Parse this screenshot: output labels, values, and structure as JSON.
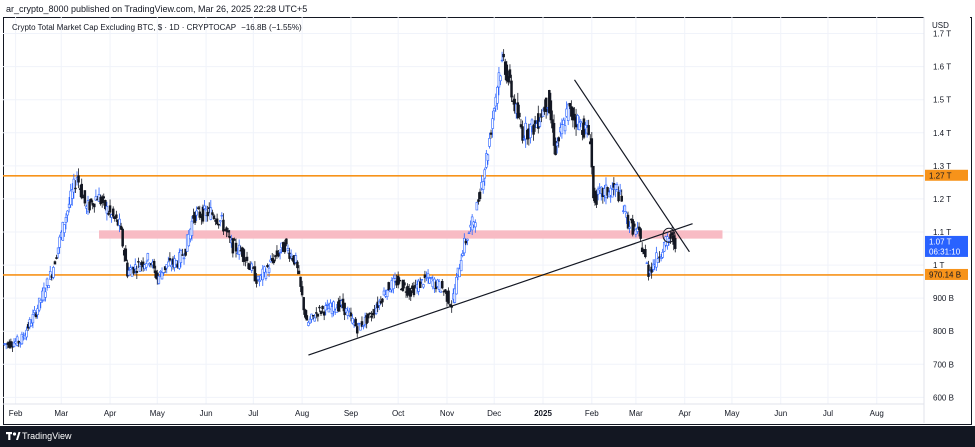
{
  "header": {
    "publish_text": "ar_crypto_8000 published on TradingView.com, Mar 26, 2025 22:28 UTC+5"
  },
  "chart_header": {
    "title": "Crypto Total Market Cap Excluding BTC, $ · 1D · CRYPTOCAP",
    "change": "−16.8B (−1.55%)"
  },
  "footer": {
    "brand": "TradingView",
    "logo_icon": "tradingview-logo-icon"
  },
  "colors": {
    "up": "#2962ff",
    "down": "#131722",
    "support_line": "#f7931a",
    "zone": "#f8bbc4",
    "trendline": "#131722",
    "price_tag": "#2962ff"
  },
  "chart_data": {
    "type": "candlestick",
    "title": "Crypto Total Market Cap Excluding BTC, $ · 1D · CRYPTOCAP",
    "currency": "USD",
    "ylim_billion": [
      580,
      1750
    ],
    "y_ticks": [
      {
        "value": 600,
        "label": "600 B"
      },
      {
        "value": 700,
        "label": "700 B"
      },
      {
        "value": 800,
        "label": "800 B"
      },
      {
        "value": 900,
        "label": "900 B"
      },
      {
        "value": 1000,
        "label": "1 T"
      },
      {
        "value": 1100,
        "label": "1.1 T"
      },
      {
        "value": 1200,
        "label": "1.2 T"
      },
      {
        "value": 1300,
        "label": "1.3 T"
      },
      {
        "value": 1400,
        "label": "1.4 T"
      },
      {
        "value": 1500,
        "label": "1.5 T"
      },
      {
        "value": 1600,
        "label": "1.6 T"
      },
      {
        "value": 1700,
        "label": "1.7 T"
      }
    ],
    "x_ticks": [
      {
        "date": "2024-02-01",
        "label": "Feb"
      },
      {
        "date": "2024-03-01",
        "label": "Mar"
      },
      {
        "date": "2024-04-01",
        "label": "Apr"
      },
      {
        "date": "2024-05-01",
        "label": "May"
      },
      {
        "date": "2024-06-01",
        "label": "Jun"
      },
      {
        "date": "2024-07-01",
        "label": "Jul"
      },
      {
        "date": "2024-08-01",
        "label": "Aug"
      },
      {
        "date": "2024-09-01",
        "label": "Sep"
      },
      {
        "date": "2024-10-01",
        "label": "Oct"
      },
      {
        "date": "2024-11-01",
        "label": "Nov"
      },
      {
        "date": "2024-12-01",
        "label": "Dec"
      },
      {
        "date": "2025-01-01",
        "label": "2025"
      },
      {
        "date": "2025-02-01",
        "label": "Feb"
      },
      {
        "date": "2025-03-01",
        "label": "Mar"
      },
      {
        "date": "2025-04-01",
        "label": "Apr"
      },
      {
        "date": "2025-05-01",
        "label": "May"
      },
      {
        "date": "2025-06-01",
        "label": "Jun"
      },
      {
        "date": "2025-07-01",
        "label": "Jul"
      },
      {
        "date": "2025-08-01",
        "label": "Aug"
      }
    ],
    "price_path": [
      [
        "2024-01-25",
        760
      ],
      [
        "2024-02-05",
        770
      ],
      [
        "2024-02-15",
        860
      ],
      [
        "2024-02-25",
        980
      ],
      [
        "2024-03-05",
        1150
      ],
      [
        "2024-03-12",
        1270
      ],
      [
        "2024-03-18",
        1170
      ],
      [
        "2024-03-25",
        1210
      ],
      [
        "2024-04-01",
        1160
      ],
      [
        "2024-04-08",
        1120
      ],
      [
        "2024-04-13",
        980
      ],
      [
        "2024-04-20",
        1000
      ],
      [
        "2024-04-27",
        1020
      ],
      [
        "2024-05-02",
        960
      ],
      [
        "2024-05-08",
        1000
      ],
      [
        "2024-05-15",
        1010
      ],
      [
        "2024-05-20",
        1050
      ],
      [
        "2024-05-25",
        1150
      ],
      [
        "2024-06-05",
        1160
      ],
      [
        "2024-06-12",
        1130
      ],
      [
        "2024-06-18",
        1060
      ],
      [
        "2024-06-25",
        1040
      ],
      [
        "2024-07-05",
        950
      ],
      [
        "2024-07-15",
        1020
      ],
      [
        "2024-07-22",
        1060
      ],
      [
        "2024-07-29",
        1010
      ],
      [
        "2024-08-05",
        820
      ],
      [
        "2024-08-12",
        860
      ],
      [
        "2024-08-20",
        870
      ],
      [
        "2024-08-27",
        880
      ],
      [
        "2024-09-06",
        810
      ],
      [
        "2024-09-15",
        850
      ],
      [
        "2024-09-25",
        930
      ],
      [
        "2024-10-01",
        950
      ],
      [
        "2024-10-10",
        920
      ],
      [
        "2024-10-20",
        960
      ],
      [
        "2024-10-30",
        930
      ],
      [
        "2024-11-05",
        880
      ],
      [
        "2024-11-12",
        1050
      ],
      [
        "2024-11-20",
        1150
      ],
      [
        "2024-11-28",
        1350
      ],
      [
        "2024-12-05",
        1580
      ],
      [
        "2024-12-08",
        1620
      ],
      [
        "2024-12-15",
        1480
      ],
      [
        "2024-12-20",
        1400
      ],
      [
        "2024-12-28",
        1420
      ],
      [
        "2025-01-05",
        1500
      ],
      [
        "2025-01-10",
        1350
      ],
      [
        "2025-01-18",
        1470
      ],
      [
        "2025-01-25",
        1430
      ],
      [
        "2025-02-01",
        1390
      ],
      [
        "2025-02-03",
        1200
      ],
      [
        "2025-02-10",
        1220
      ],
      [
        "2025-02-18",
        1230
      ],
      [
        "2025-02-25",
        1130
      ],
      [
        "2025-03-04",
        1090
      ],
      [
        "2025-03-10",
        980
      ],
      [
        "2025-03-14",
        1010
      ],
      [
        "2025-03-20",
        1060
      ],
      [
        "2025-03-24",
        1085
      ],
      [
        "2025-03-26",
        1070
      ]
    ],
    "horizontal_lines": [
      {
        "value": 1270,
        "color": "#f7931a"
      },
      {
        "value": 970.14,
        "color": "#f7931a"
      }
    ],
    "zone": {
      "from": 1080,
      "to": 1105,
      "x_from": "2024-03-25",
      "x_to": "2025-04-25",
      "color": "#f8bbc4"
    },
    "trendlines": [
      {
        "from": [
          "2024-08-05",
          728
        ],
        "to": [
          "2025-04-06",
          1125
        ]
      },
      {
        "from": [
          "2025-01-21",
          1560
        ],
        "to": [
          "2025-04-04",
          1040
        ]
      }
    ],
    "price_tags": [
      {
        "label": "1.27 T",
        "value": 1270,
        "type": "line"
      },
      {
        "label": "1.07 T",
        "value": 1070,
        "type": "last"
      },
      {
        "label": "06:31:10",
        "value": 1070,
        "type": "countdown"
      },
      {
        "label": "970.14 B",
        "value": 970.14,
        "type": "line"
      }
    ]
  }
}
